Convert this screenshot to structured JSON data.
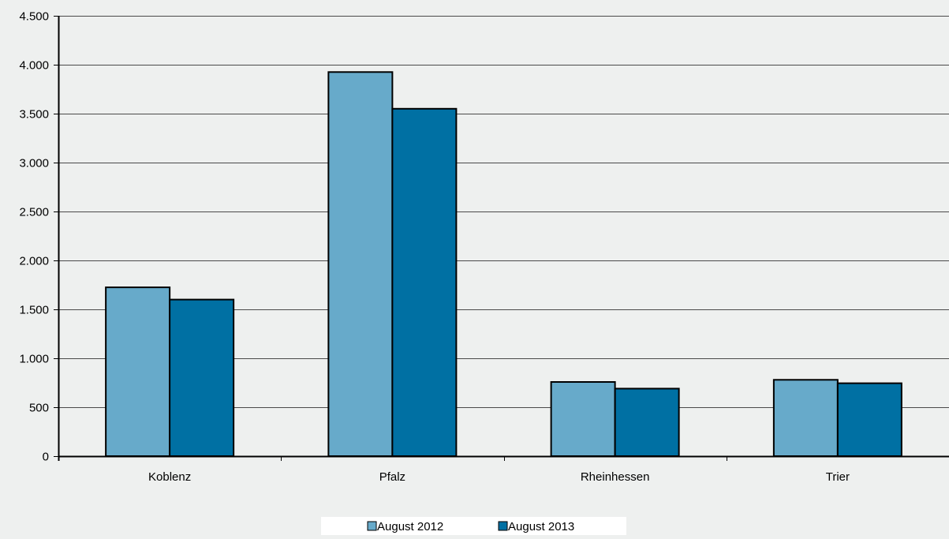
{
  "chart_data": {
    "type": "bar",
    "title": "",
    "xlabel": "",
    "ylabel": "",
    "categories": [
      "Koblenz",
      "Pfalz",
      "Rheinhessen",
      "Trier"
    ],
    "series": [
      {
        "name": "August 2012",
        "color": "#67aaca",
        "values": [
          1725,
          3925,
          758,
          780
        ]
      },
      {
        "name": "August 2013",
        "color": "#0070a3",
        "values": [
          1600,
          3550,
          690,
          745
        ]
      }
    ],
    "ylim": [
      0,
      4500
    ],
    "yticks": [
      0,
      500,
      1000,
      1500,
      2000,
      2500,
      3000,
      3500,
      4000,
      4500
    ],
    "ytick_labels": [
      "0",
      "500",
      "1.000",
      "1.500",
      "2.000",
      "2.500",
      "3.000",
      "3.500",
      "4.000",
      "4.500"
    ],
    "grid": true,
    "legend_position": "bottom"
  }
}
